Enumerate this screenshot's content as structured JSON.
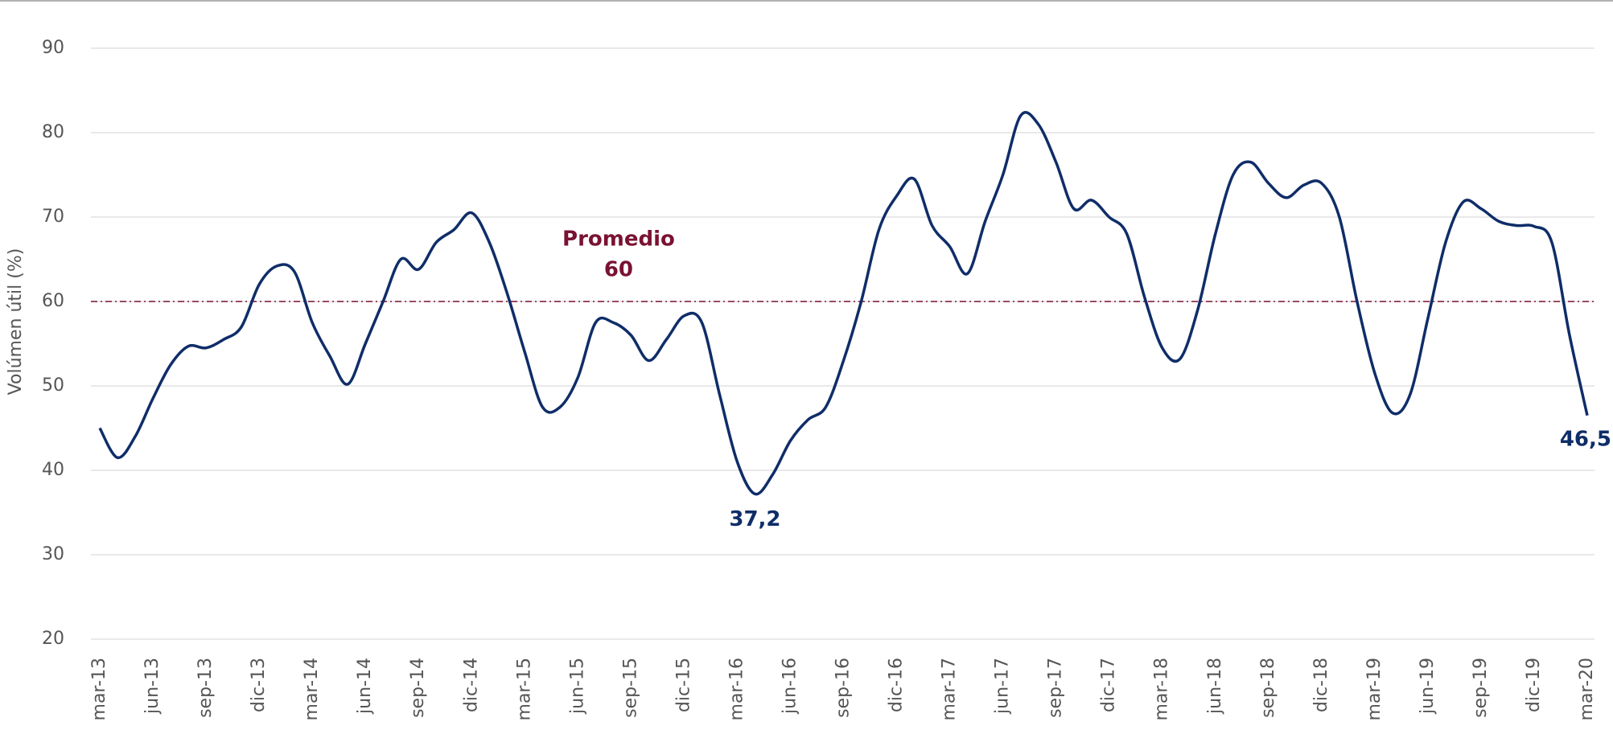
{
  "chart_data": {
    "type": "line",
    "y_label": "Volúmen útil (%)",
    "categories": [
      "mar-13",
      null,
      null,
      "jun-13",
      null,
      null,
      "sep-13",
      null,
      null,
      "dic-13",
      null,
      null,
      "mar-14",
      null,
      null,
      "jun-14",
      null,
      null,
      "sep-14",
      null,
      null,
      "dic-14",
      null,
      null,
      "mar-15",
      null,
      null,
      "jun-15",
      null,
      null,
      "sep-15",
      null,
      null,
      "dic-15",
      null,
      null,
      "mar-16",
      null,
      null,
      "jun-16",
      null,
      null,
      "sep-16",
      null,
      null,
      "dic-16",
      null,
      null,
      "mar-17",
      null,
      null,
      "jun-17",
      null,
      null,
      "sep-17",
      null,
      null,
      "dic-17",
      null,
      null,
      "mar-18",
      null,
      null,
      "jun-18",
      null,
      null,
      "sep-18",
      null,
      null,
      "dic-18",
      null,
      null,
      "mar-19",
      null,
      null,
      "jun-19",
      null,
      null,
      "sep-19",
      null,
      null,
      "dic-19",
      null,
      null,
      "mar-20"
    ],
    "series": [
      {
        "color": "#0f2d68",
        "values": [
          45,
          41.5,
          44,
          48.5,
          52.5,
          54.7,
          54.5,
          55.5,
          57,
          62,
          64.2,
          63.5,
          57.5,
          53.5,
          50.2,
          55,
          60,
          65,
          63.8,
          67,
          68.5,
          70.5,
          67,
          61,
          54,
          47.5,
          47.5,
          51,
          57.5,
          57.5,
          56,
          53,
          55.5,
          58.3,
          57.5,
          49,
          41,
          37.2,
          39.5,
          43.5,
          46,
          47.5,
          53,
          60,
          68.5,
          72.5,
          74.5,
          69,
          66.5,
          63.3,
          69.5,
          75,
          82,
          81,
          76.5,
          71,
          72,
          70,
          68,
          60.5,
          54.5,
          53.2,
          59,
          68,
          75,
          76.5,
          74,
          72.3,
          73.8,
          74,
          70,
          60,
          51.5,
          46.8,
          49,
          58,
          67,
          71.8,
          71,
          69.5,
          69,
          68.9,
          67,
          56,
          46.5
        ],
        "value_labels": [
          null,
          null,
          null,
          null,
          null,
          null,
          null,
          null,
          null,
          null,
          null,
          null,
          null,
          null,
          null,
          null,
          null,
          null,
          null,
          null,
          null,
          null,
          null,
          null,
          null,
          null,
          null,
          null,
          null,
          null,
          null,
          null,
          null,
          null,
          null,
          null,
          null,
          "37,2",
          null,
          null,
          null,
          null,
          null,
          null,
          null,
          null,
          null,
          null,
          null,
          null,
          null,
          null,
          null,
          null,
          null,
          null,
          null,
          null,
          null,
          null,
          null,
          null,
          null,
          null,
          null,
          null,
          null,
          null,
          null,
          null,
          null,
          null,
          null,
          null,
          null,
          null,
          null,
          null,
          null,
          null,
          null,
          null,
          null,
          null,
          "46,5"
        ]
      }
    ],
    "reference_line": {
      "label": "Promedio",
      "value": 60,
      "color": "#7a1232"
    },
    "ylim": [
      20,
      90
    ],
    "yticks": [
      20,
      30,
      40,
      50,
      60,
      70,
      80,
      90
    ],
    "grid": true
  }
}
